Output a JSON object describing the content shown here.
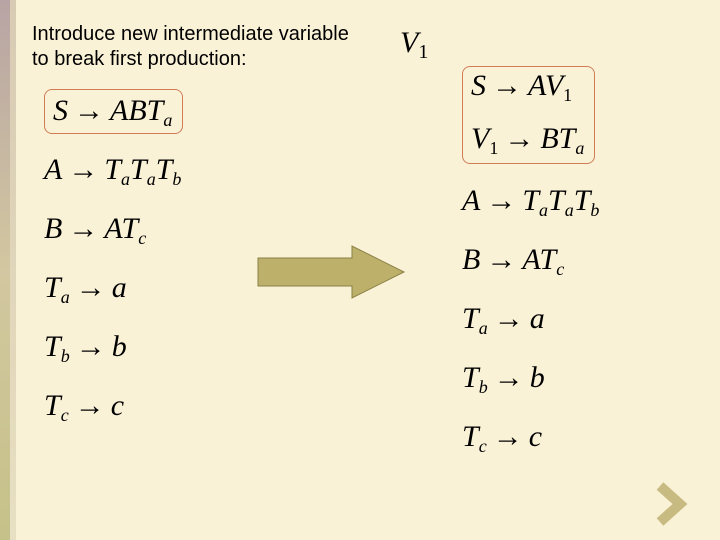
{
  "colors": {
    "slide_bg": "#faf2d7",
    "prod_box_border": "#d07d56",
    "arrow_fill": "#bcb06a",
    "arrow_stroke": "#8a8046",
    "chevron_fill": "#c8bb82",
    "text_color": "#000000"
  },
  "intro": {
    "line1": "Introduce new intermediate variable",
    "line2": "to break first production:"
  },
  "intro_var": {
    "base": "V",
    "sub": "1"
  },
  "left_productions": [
    {
      "lhs": "S",
      "rhs": [
        {
          "t": "v",
          "v": "A"
        },
        {
          "t": "v",
          "v": "B"
        },
        {
          "t": "v",
          "v": "T"
        },
        {
          "t": "sub",
          "v": "a"
        }
      ],
      "boxed": true
    },
    {
      "lhs": "A",
      "rhs": [
        {
          "t": "v",
          "v": "T"
        },
        {
          "t": "sub",
          "v": "a"
        },
        {
          "t": "v",
          "v": "T"
        },
        {
          "t": "sub",
          "v": "a"
        },
        {
          "t": "v",
          "v": "T"
        },
        {
          "t": "sub",
          "v": "b"
        }
      ],
      "boxed": false
    },
    {
      "lhs": "B",
      "rhs": [
        {
          "t": "v",
          "v": "A"
        },
        {
          "t": "v",
          "v": "T"
        },
        {
          "t": "sub",
          "v": "c"
        }
      ],
      "boxed": false
    },
    {
      "lhs_tokens": [
        {
          "t": "v",
          "v": "T"
        },
        {
          "t": "sub",
          "v": "a"
        }
      ],
      "rhs": [
        {
          "t": "v",
          "v": "a"
        }
      ],
      "boxed": false
    },
    {
      "lhs_tokens": [
        {
          "t": "v",
          "v": "T"
        },
        {
          "t": "sub",
          "v": "b"
        }
      ],
      "rhs": [
        {
          "t": "v",
          "v": "b"
        }
      ],
      "boxed": false
    },
    {
      "lhs_tokens": [
        {
          "t": "v",
          "v": "T"
        },
        {
          "t": "sub",
          "v": "c"
        }
      ],
      "rhs": [
        {
          "t": "v",
          "v": "c"
        }
      ],
      "boxed": false
    }
  ],
  "right_productions": [
    {
      "lhs": "S",
      "rhs": [
        {
          "t": "v",
          "v": "A"
        },
        {
          "t": "v",
          "v": "V"
        },
        {
          "t": "subn",
          "v": "1"
        }
      ],
      "boxed": true,
      "group_start": true
    },
    {
      "lhs_tokens": [
        {
          "t": "v",
          "v": "V"
        },
        {
          "t": "subn",
          "v": "1"
        }
      ],
      "rhs": [
        {
          "t": "v",
          "v": "B"
        },
        {
          "t": "v",
          "v": "T"
        },
        {
          "t": "sub",
          "v": "a"
        }
      ],
      "boxed": true,
      "group_end": true
    },
    {
      "lhs": "A",
      "rhs": [
        {
          "t": "v",
          "v": "T"
        },
        {
          "t": "sub",
          "v": "a"
        },
        {
          "t": "v",
          "v": "T"
        },
        {
          "t": "sub",
          "v": "a"
        },
        {
          "t": "v",
          "v": "T"
        },
        {
          "t": "sub",
          "v": "b"
        }
      ],
      "boxed": false
    },
    {
      "lhs": "B",
      "rhs": [
        {
          "t": "v",
          "v": "A"
        },
        {
          "t": "v",
          "v": "T"
        },
        {
          "t": "sub",
          "v": "c"
        }
      ],
      "boxed": false
    },
    {
      "lhs_tokens": [
        {
          "t": "v",
          "v": "T"
        },
        {
          "t": "sub",
          "v": "a"
        }
      ],
      "rhs": [
        {
          "t": "v",
          "v": "a"
        }
      ],
      "boxed": false
    },
    {
      "lhs_tokens": [
        {
          "t": "v",
          "v": "T"
        },
        {
          "t": "sub",
          "v": "b"
        }
      ],
      "rhs": [
        {
          "t": "v",
          "v": "b"
        }
      ],
      "boxed": false
    },
    {
      "lhs_tokens": [
        {
          "t": "v",
          "v": "T"
        },
        {
          "t": "sub",
          "v": "c"
        }
      ],
      "rhs": [
        {
          "t": "v",
          "v": "c"
        }
      ],
      "boxed": false
    }
  ],
  "arrow_glyph": "→"
}
